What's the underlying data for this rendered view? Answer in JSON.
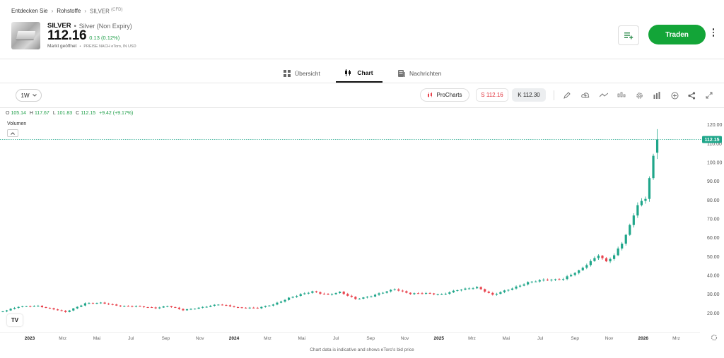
{
  "breadcrumb": {
    "items": [
      "Entdecken Sie",
      "Rohstoffe",
      "SILVER"
    ],
    "suffix": "(CFD)"
  },
  "instrument": {
    "symbol": "SILVER",
    "full_name": "Silver (Non Expiry)",
    "price": "112.16",
    "change": "0.13 (0.12%)",
    "market_status": "Markt geöffnet",
    "price_note": "PREISE NACH eToro, IN USD"
  },
  "header": {
    "trade_label": "Traden"
  },
  "tabs": [
    {
      "label": "Übersicht",
      "icon": "grid-icon"
    },
    {
      "label": "Chart",
      "icon": "candles-icon"
    },
    {
      "label": "Nachrichten",
      "icon": "news-icon"
    }
  ],
  "toolbar": {
    "timeframe": "1W",
    "procharts": "ProCharts",
    "sell": "S 112.16",
    "buy": "K 112.30",
    "tools": [
      "pencil-icon",
      "cloud-icon",
      "line-icon",
      "indicator-icon",
      "settings-icon",
      "bar-chart-icon",
      "plus-circle-icon",
      "share-icon",
      "expand-icon"
    ]
  },
  "legend": {
    "o_label": "O",
    "o": "105.14",
    "h_label": "H",
    "h": "117.67",
    "l_label": "L",
    "l": "101.83",
    "c_label": "C",
    "c": "112.15",
    "change": "+9.42 (+9.17%)",
    "volume_label": "Volumen"
  },
  "colors": {
    "up": "#1fa68a",
    "down": "#e8434d",
    "accent": "#13a538"
  },
  "chart_data": {
    "type": "candlestick",
    "title": "",
    "last_price_label": "112.15",
    "ylim": [
      10,
      127
    ],
    "yticks": [
      20,
      30,
      40,
      50,
      60,
      70,
      80,
      90,
      100,
      110,
      120
    ],
    "ytick_labels": [
      "20.00",
      "30.00",
      "40.00",
      "50.00",
      "60.00",
      "70.00",
      "80.00",
      "90.00",
      "100.00",
      "110.00",
      "120.00"
    ],
    "x_start": "2022-11-14",
    "x_end": "2026-04-06",
    "xticks": [
      {
        "date": "2022-11-01",
        "label": "Nov",
        "bold": false
      },
      {
        "date": "2023-01-01",
        "label": "2023",
        "bold": true
      },
      {
        "date": "2023-03-01",
        "label": "Mrz",
        "bold": false
      },
      {
        "date": "2023-05-01",
        "label": "Mai",
        "bold": false
      },
      {
        "date": "2023-07-01",
        "label": "Jul",
        "bold": false
      },
      {
        "date": "2023-09-01",
        "label": "Sep",
        "bold": false
      },
      {
        "date": "2023-11-01",
        "label": "Nov",
        "bold": false
      },
      {
        "date": "2024-01-01",
        "label": "2024",
        "bold": true
      },
      {
        "date": "2024-03-01",
        "label": "Mrz",
        "bold": false
      },
      {
        "date": "2024-05-01",
        "label": "Mai",
        "bold": false
      },
      {
        "date": "2024-07-01",
        "label": "Jul",
        "bold": false
      },
      {
        "date": "2024-09-01",
        "label": "Sep",
        "bold": false
      },
      {
        "date": "2024-11-01",
        "label": "Nov",
        "bold": false
      },
      {
        "date": "2025-01-01",
        "label": "2025",
        "bold": true
      },
      {
        "date": "2025-03-01",
        "label": "Mrz",
        "bold": false
      },
      {
        "date": "2025-05-01",
        "label": "Mai",
        "bold": false
      },
      {
        "date": "2025-07-01",
        "label": "Jul",
        "bold": false
      },
      {
        "date": "2025-09-01",
        "label": "Sep",
        "bold": false
      },
      {
        "date": "2025-11-01",
        "label": "Nov",
        "bold": false
      },
      {
        "date": "2026-01-01",
        "label": "2026",
        "bold": true
      },
      {
        "date": "2026-03-01",
        "label": "Mrz",
        "bold": false
      }
    ],
    "close_anchors": [
      [
        "2022-11-14",
        21.0
      ],
      [
        "2022-12-12",
        23.3
      ],
      [
        "2023-01-16",
        23.8
      ],
      [
        "2023-02-13",
        22.0
      ],
      [
        "2023-03-06",
        20.5
      ],
      [
        "2023-04-10",
        25.2
      ],
      [
        "2023-05-08",
        25.3
      ],
      [
        "2023-06-12",
        23.8
      ],
      [
        "2023-07-10",
        23.5
      ],
      [
        "2023-08-14",
        22.7
      ],
      [
        "2023-09-04",
        23.8
      ],
      [
        "2023-10-02",
        21.5
      ],
      [
        "2023-11-06",
        23.2
      ],
      [
        "2023-12-04",
        24.5
      ],
      [
        "2024-01-08",
        23.0
      ],
      [
        "2024-02-12",
        22.6
      ],
      [
        "2024-03-11",
        24.6
      ],
      [
        "2024-04-08",
        28.0
      ],
      [
        "2024-05-20",
        31.5
      ],
      [
        "2024-06-17",
        29.7
      ],
      [
        "2024-07-08",
        31.0
      ],
      [
        "2024-08-05",
        27.6
      ],
      [
        "2024-09-02",
        28.9
      ],
      [
        "2024-10-14",
        32.8
      ],
      [
        "2024-11-11",
        30.2
      ],
      [
        "2024-12-09",
        30.5
      ],
      [
        "2025-01-06",
        29.9
      ],
      [
        "2025-02-03",
        32.1
      ],
      [
        "2025-03-10",
        33.8
      ],
      [
        "2025-04-07",
        29.5
      ],
      [
        "2025-05-05",
        32.5
      ],
      [
        "2025-06-09",
        36.2
      ],
      [
        "2025-07-07",
        37.5
      ],
      [
        "2025-08-11",
        38.2
      ],
      [
        "2025-09-08",
        42.3
      ],
      [
        "2025-10-13",
        51.0
      ],
      [
        "2025-10-27",
        47.2
      ],
      [
        "2025-11-10",
        50.5
      ],
      [
        "2025-11-24",
        57.0
      ],
      [
        "2025-12-08",
        66.5
      ],
      [
        "2025-12-22",
        78.0
      ],
      [
        "2026-01-05",
        80.5
      ],
      [
        "2026-01-12",
        92.0
      ],
      [
        "2026-01-19",
        102.7
      ],
      [
        "2026-01-26",
        112.15
      ]
    ],
    "last_candle": {
      "date": "2026-01-26",
      "open": 105.14,
      "high": 117.67,
      "low": 101.83,
      "close": 112.15
    },
    "note": "Chart data is indicative and shows eToro's bid price"
  }
}
